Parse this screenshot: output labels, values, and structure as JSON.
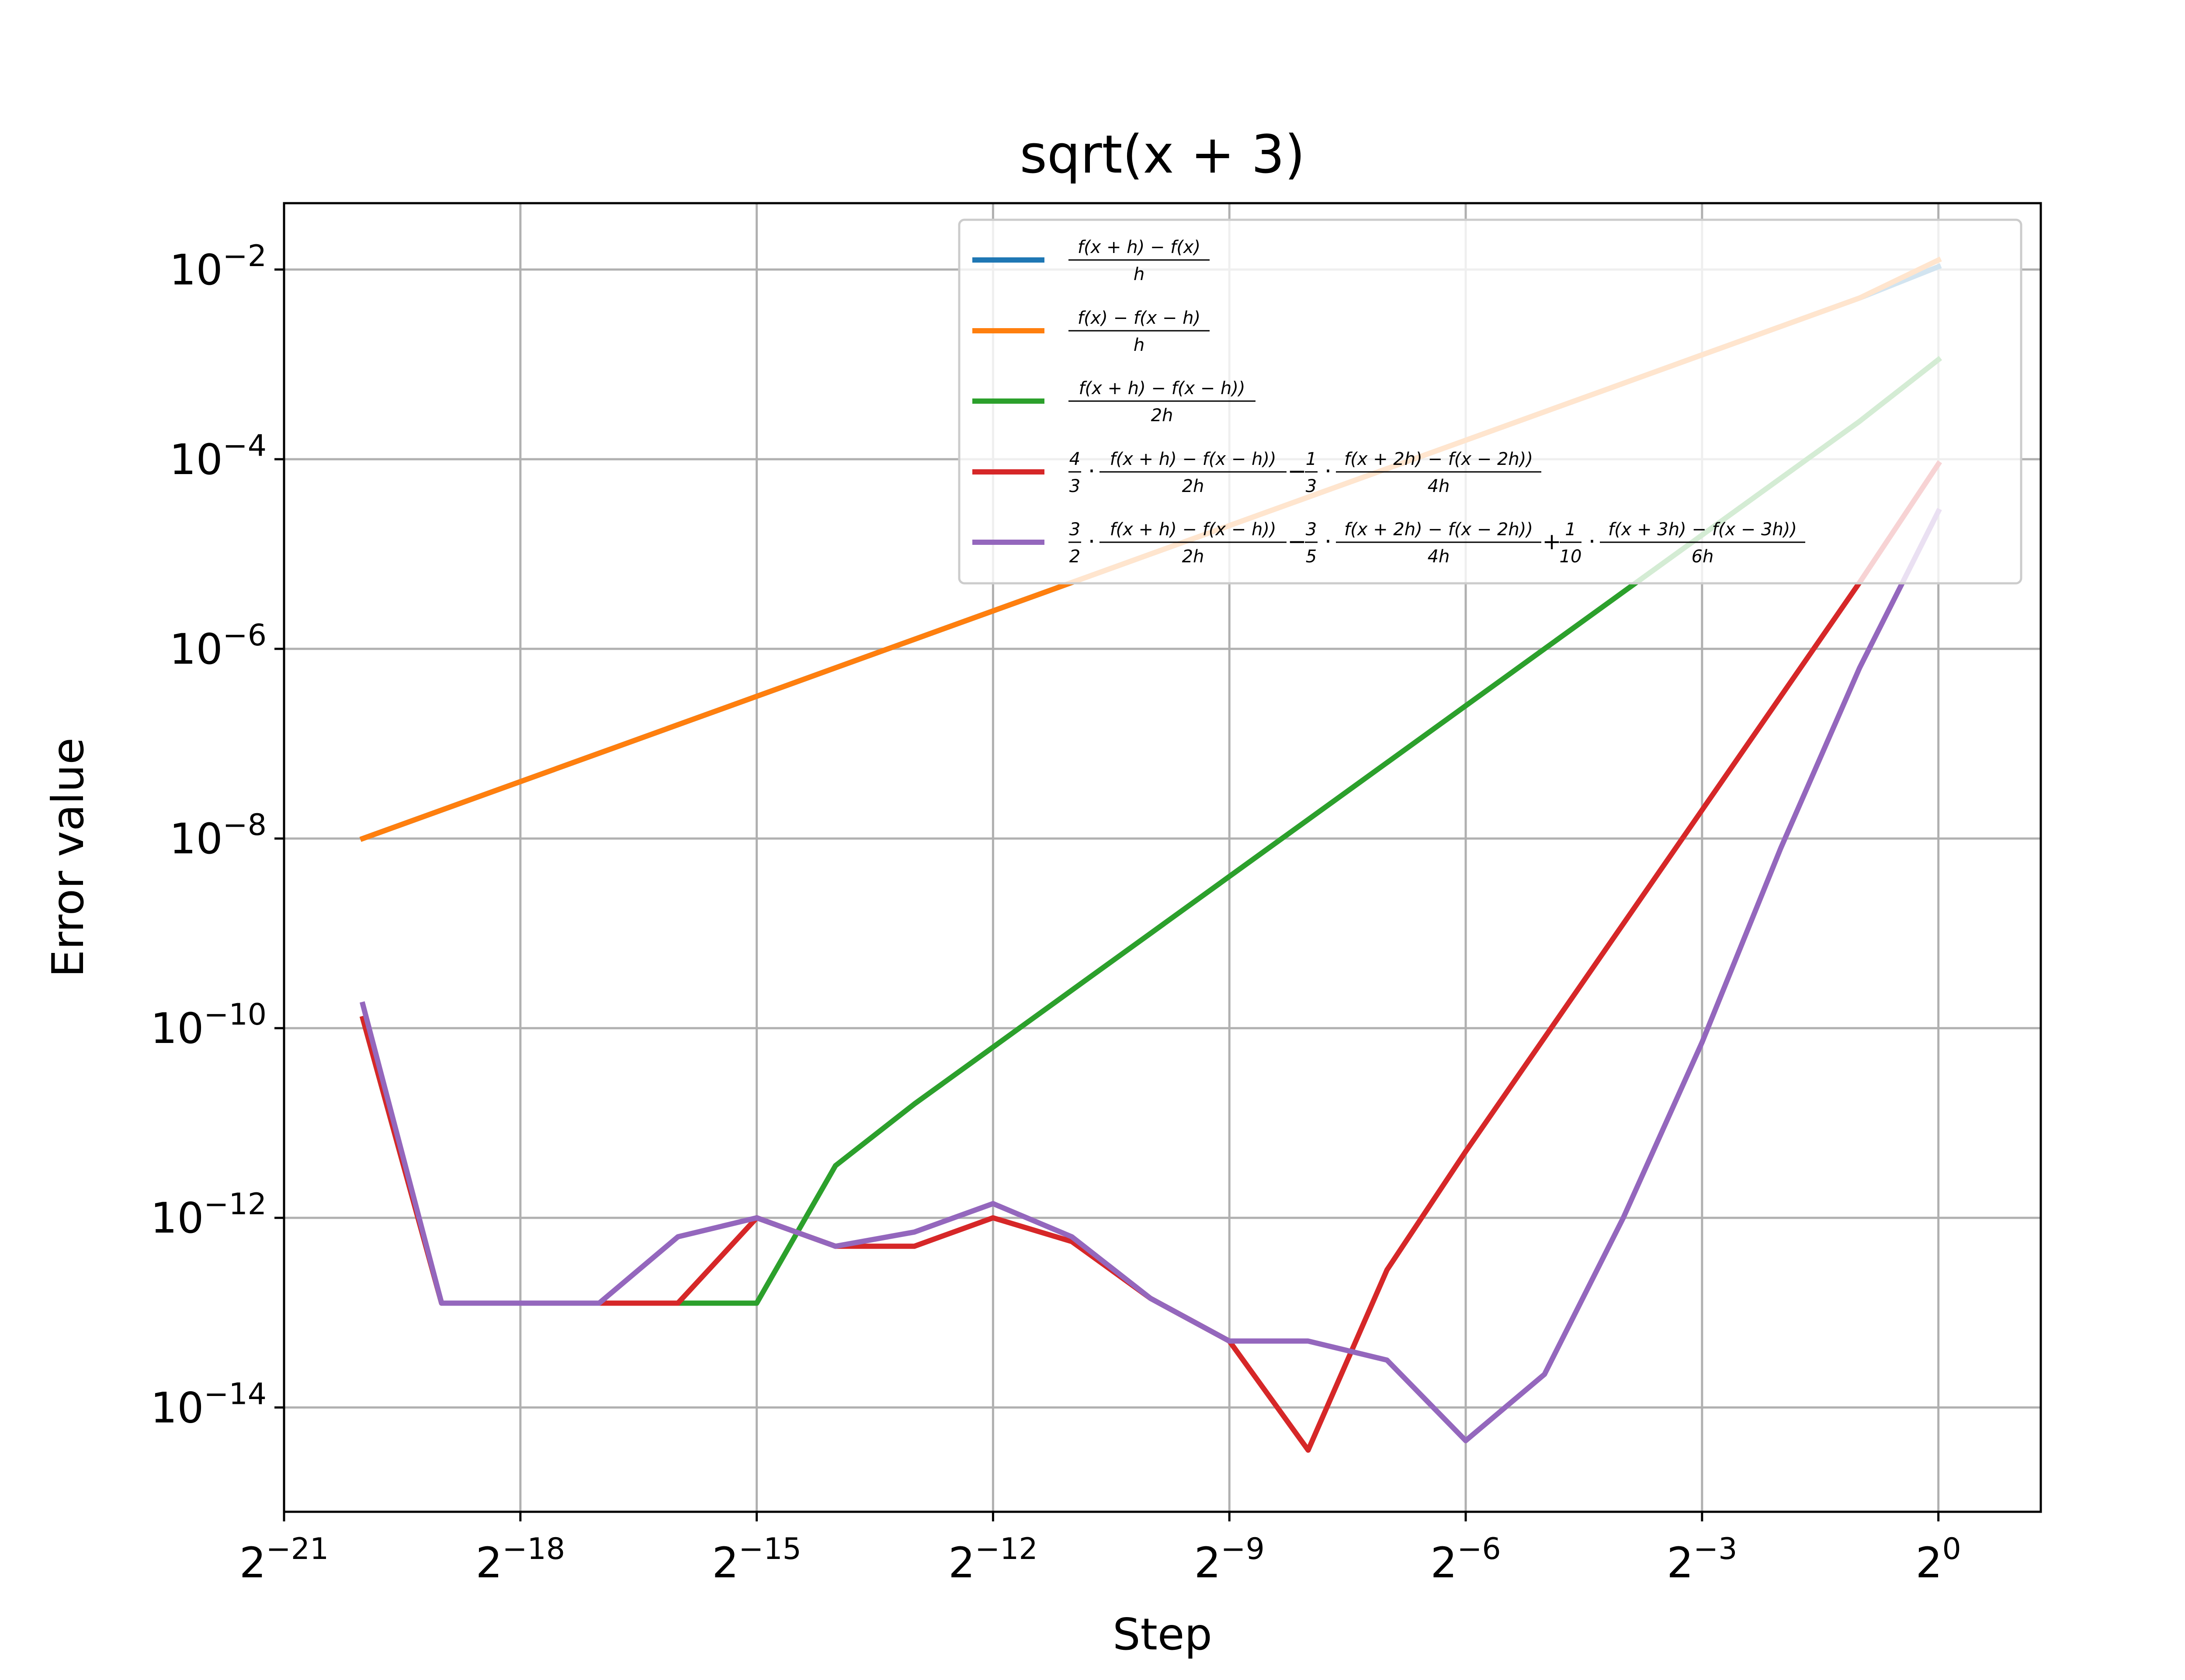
{
  "chart_data": {
    "type": "line",
    "title": "sqrt(x + 3)",
    "xlabel": "Step",
    "ylabel": "Error value",
    "x_scale": "log2",
    "y_scale": "log10",
    "xlim_exp": [
      -21,
      1.3
    ],
    "ylim_exp": [
      -15.1,
      -1.3
    ],
    "x_ticks": [
      {
        "exp": -21,
        "base": "2",
        "sup": "−21"
      },
      {
        "exp": -18,
        "base": "2",
        "sup": "−18"
      },
      {
        "exp": -15,
        "base": "2",
        "sup": "−15"
      },
      {
        "exp": -12,
        "base": "2",
        "sup": "−12"
      },
      {
        "exp": -9,
        "base": "2",
        "sup": "−9"
      },
      {
        "exp": -6,
        "base": "2",
        "sup": "−6"
      },
      {
        "exp": -3,
        "base": "2",
        "sup": "−3"
      },
      {
        "exp": 0,
        "base": "2",
        "sup": "0"
      }
    ],
    "y_ticks": [
      {
        "exp": -2,
        "base": "10",
        "sup": "−2"
      },
      {
        "exp": -4,
        "base": "10",
        "sup": "−4"
      },
      {
        "exp": -6,
        "base": "10",
        "sup": "−6"
      },
      {
        "exp": -8,
        "base": "10",
        "sup": "−8"
      },
      {
        "exp": -10,
        "base": "10",
        "sup": "−10"
      },
      {
        "exp": -12,
        "base": "10",
        "sup": "−12"
      },
      {
        "exp": -14,
        "base": "10",
        "sup": "−14"
      }
    ],
    "grid": true,
    "legend_position": "top-right",
    "x_exponents": [
      -20,
      -19,
      -18,
      -17,
      -16,
      -15,
      -14,
      -13,
      -12,
      -11,
      -10,
      -9,
      -8,
      -7,
      -6,
      -5,
      -4,
      -3,
      -2,
      -1,
      0
    ],
    "series": [
      {
        "legend": "f(x + h) − f(x) / h",
        "color": "#1f77b4",
        "y_log10": [
          -8.0,
          -7.7,
          -7.4,
          -7.1,
          -6.8,
          -6.5,
          -6.2,
          -5.9,
          -5.6,
          -5.3,
          -5.0,
          -4.7,
          -4.4,
          -4.1,
          -3.8,
          -3.5,
          -3.2,
          -2.9,
          -2.6,
          -2.3,
          -1.97
        ]
      },
      {
        "legend": "f(x) − f(x − h) / h",
        "color": "#ff7f0e",
        "y_log10": [
          -8.0,
          -7.7,
          -7.4,
          -7.1,
          -6.8,
          -6.5,
          -6.2,
          -5.9,
          -5.6,
          -5.3,
          -5.0,
          -4.7,
          -4.4,
          -4.1,
          -3.8,
          -3.5,
          -3.2,
          -2.9,
          -2.6,
          -2.3,
          -1.9
        ]
      },
      {
        "legend": "f(x + h) − f(x − h)) / 2h",
        "color": "#2ca02c",
        "y_log10": [
          -9.9,
          -12.9,
          -12.9,
          -12.9,
          -12.9,
          -12.9,
          -11.45,
          -10.8,
          -10.2,
          -9.6,
          -9.0,
          -8.4,
          -7.8,
          -7.2,
          -6.6,
          -6.0,
          -5.4,
          -4.8,
          -4.2,
          -3.6,
          -2.95
        ]
      },
      {
        "legend": "4/3 · (f(x + h) − f(x − h)) / 2h) − 1/3 · (f(x + 2h) − f(x − 2h)) / 4h)",
        "color": "#d62728",
        "y_log10": [
          -9.9,
          -12.9,
          -12.9,
          -12.9,
          -12.9,
          -12.0,
          -12.3,
          -12.3,
          -12.0,
          -12.25,
          -12.85,
          -13.3,
          -14.45,
          -12.55,
          -11.3,
          -10.1,
          -8.9,
          -7.7,
          -6.5,
          -5.3,
          -4.05
        ]
      },
      {
        "legend": "3/2 · (f(x + h) − f(x − h)) / 2h) − 3/5 · (f(x + 2h) − f(x − 2h)) / 4h) + 1/10 · (f(x + 3h) − f(x − 3h)) / 6h)",
        "color": "#9467bd",
        "y_log10": [
          -9.75,
          -12.9,
          -12.9,
          -12.9,
          -12.2,
          -12.0,
          -12.3,
          -12.15,
          -11.85,
          -12.2,
          -12.85,
          -13.3,
          -13.3,
          -13.5,
          -14.35,
          -13.65,
          -12.0,
          -10.15,
          -8.1,
          -6.2,
          -4.55
        ]
      }
    ]
  },
  "legend": {
    "entries": [
      {
        "parts": [
          {
            "t": "frac",
            "n": "f(x + h) − f(x)",
            "d": "h"
          }
        ]
      },
      {
        "parts": [
          {
            "t": "frac",
            "n": "f(x) − f(x − h)",
            "d": "h"
          }
        ]
      },
      {
        "parts": [
          {
            "t": "frac",
            "n": "f(x + h) − f(x − h))",
            "d": "2h"
          }
        ]
      },
      {
        "parts": [
          {
            "t": "frac",
            "n": "4",
            "d": "3"
          },
          {
            "t": "op",
            "s": "·"
          },
          {
            "t": "frac",
            "n": "f(x + h) − f(x − h))",
            "d": "2h"
          },
          {
            "t": "op",
            "s": "−"
          },
          {
            "t": "frac",
            "n": "1",
            "d": "3"
          },
          {
            "t": "op",
            "s": "·"
          },
          {
            "t": "frac",
            "n": "f(x + 2h) − f(x − 2h))",
            "d": "4h"
          }
        ]
      },
      {
        "parts": [
          {
            "t": "frac",
            "n": "3",
            "d": "2"
          },
          {
            "t": "op",
            "s": "·"
          },
          {
            "t": "frac",
            "n": "f(x + h) − f(x − h))",
            "d": "2h"
          },
          {
            "t": "op",
            "s": "−"
          },
          {
            "t": "frac",
            "n": "3",
            "d": "5"
          },
          {
            "t": "op",
            "s": "·"
          },
          {
            "t": "frac",
            "n": "f(x + 2h) − f(x − 2h))",
            "d": "4h"
          },
          {
            "t": "op",
            "s": "+"
          },
          {
            "t": "frac",
            "n": "1",
            "d": "10"
          },
          {
            "t": "op",
            "s": "·"
          },
          {
            "t": "frac",
            "n": "f(x + 3h) − f(x − 3h))",
            "d": "6h"
          }
        ]
      }
    ]
  }
}
